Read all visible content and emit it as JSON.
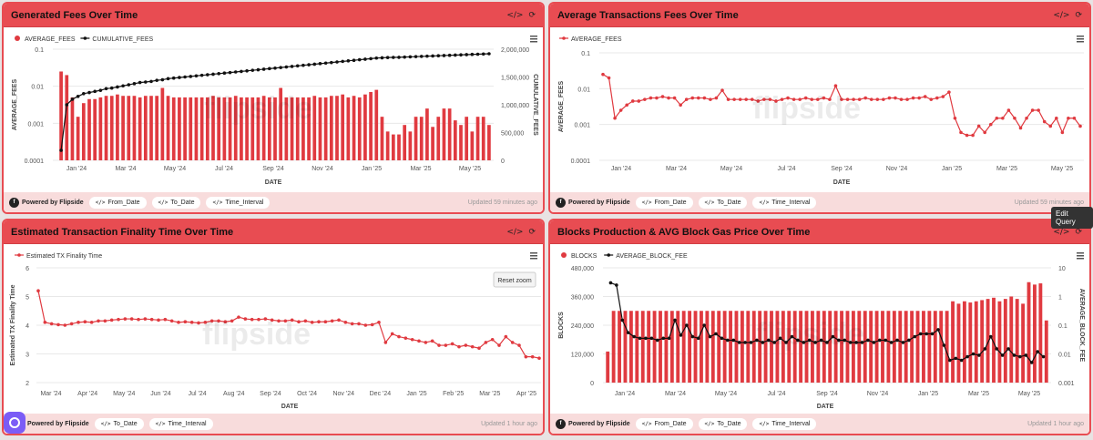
{
  "panels": {
    "p1": {
      "title": "Generated Fees Over Time",
      "updated": "Updated 59 minutes ago",
      "chips": [
        "From_Date",
        "To_Date",
        "Time_Interval"
      ]
    },
    "p2": {
      "title": "Average Transactions Fees Over Time",
      "updated": "Updated 59 minutes ago",
      "chips": [
        "From_Date",
        "To_Date",
        "Time_Interval"
      ]
    },
    "p3": {
      "title": "Estimated Transaction Finality Time Over Time",
      "updated": "Updated 1 hour ago",
      "chips": [
        "To_Date",
        "Time_Interval"
      ]
    },
    "p4": {
      "title": "Blocks Production & AVG Block Gas Price Over Time",
      "updated": "Updated 1 hour ago",
      "chips": [
        "From_Date",
        "To_Date",
        "Time_Interval"
      ]
    }
  },
  "footer": {
    "powered_by": "Powered by Flipside",
    "code_glyph": "</>"
  },
  "icons": {
    "code": "code-icon",
    "refresh": "refresh-icon",
    "menu": "menu-icon"
  },
  "tooltip": "Edit Query",
  "reset_zoom": "Reset zoom",
  "watermark": "flipside",
  "chart_data": [
    {
      "type": "bar",
      "xlabel": "DATE",
      "ylabel": "AVERAGE_FEES",
      "y2label": "CUMULATIVE_FEES",
      "y_scale": "log",
      "ylim": [
        0.0001,
        0.1
      ],
      "y2lim": [
        0,
        2000000
      ],
      "y_ticks": [
        "0.1",
        "0.01",
        "0.001",
        "0.0001"
      ],
      "y2_ticks": [
        "2,000,000",
        "1,500,000",
        "1,000,000",
        "500,000",
        "0"
      ],
      "x_ticks": [
        "Jan '24",
        "Mar '24",
        "May '24",
        "Jul '24",
        "Sep '24",
        "Nov '24",
        "Jan '25",
        "Mar '25",
        "May '25"
      ],
      "series": [
        {
          "name": "AVERAGE_FEES",
          "type": "bar",
          "color": "#e03a40",
          "values": [
            0.025,
            0.02,
            0.005,
            0.0015,
            0.0035,
            0.0045,
            0.0045,
            0.005,
            0.0055,
            0.0055,
            0.006,
            0.0055,
            0.0055,
            0.0055,
            0.005,
            0.0055,
            0.0055,
            0.0055,
            0.009,
            0.0055,
            0.005,
            0.005,
            0.005,
            0.005,
            0.005,
            0.005,
            0.005,
            0.0055,
            0.005,
            0.005,
            0.005,
            0.0055,
            0.005,
            0.005,
            0.005,
            0.005,
            0.0055,
            0.005,
            0.005,
            0.009,
            0.005,
            0.005,
            0.005,
            0.005,
            0.005,
            0.0055,
            0.005,
            0.005,
            0.0055,
            0.0055,
            0.006,
            0.005,
            0.0055,
            0.005,
            0.006,
            0.007,
            0.008,
            0.0015,
            0.0006,
            0.0005,
            0.0005,
            0.0009,
            0.0006,
            0.0015,
            0.0015,
            0.0025,
            0.0008,
            0.0015,
            0.0025,
            0.0025,
            0.0012,
            0.0009,
            0.0015,
            0.0006,
            0.0015,
            0.0015,
            0.0009
          ]
        },
        {
          "name": "CUMULATIVE_FEES",
          "type": "line",
          "color": "#111111",
          "values": [
            180000,
            1000000,
            1100000,
            1150000,
            1200000,
            1220000,
            1240000,
            1260000,
            1290000,
            1300000,
            1320000,
            1340000,
            1360000,
            1380000,
            1400000,
            1410000,
            1420000,
            1440000,
            1450000,
            1470000,
            1480000,
            1490000,
            1500000,
            1510000,
            1520000,
            1530000,
            1540000,
            1550000,
            1560000,
            1570000,
            1580000,
            1590000,
            1600000,
            1610000,
            1620000,
            1630000,
            1640000,
            1650000,
            1660000,
            1670000,
            1680000,
            1690000,
            1700000,
            1710000,
            1720000,
            1730000,
            1740000,
            1750000,
            1760000,
            1770000,
            1780000,
            1790000,
            1800000,
            1810000,
            1820000,
            1830000,
            1840000,
            1845000,
            1850000,
            1852000,
            1854000,
            1858000,
            1862000,
            1866000,
            1870000,
            1874000,
            1878000,
            1882000,
            1886000,
            1890000,
            1894000,
            1898000,
            1902000,
            1906000,
            1910000,
            1914000,
            1918000
          ]
        }
      ]
    },
    {
      "type": "line",
      "xlabel": "DATE",
      "ylabel": "AVERAGE_FEES",
      "y_scale": "log",
      "ylim": [
        0.0001,
        0.1
      ],
      "y_ticks": [
        "0.1",
        "0.01",
        "0.001",
        "0.0001"
      ],
      "x_ticks": [
        "Jan '24",
        "Mar '24",
        "May '24",
        "Jul '24",
        "Sep '24",
        "Nov '24",
        "Jan '25",
        "Mar '25",
        "May '25"
      ],
      "series": [
        {
          "name": "AVERAGE_FEES",
          "color": "#e03a40",
          "values": [
            0.025,
            0.02,
            0.0015,
            0.0025,
            0.0035,
            0.0045,
            0.0045,
            0.005,
            0.0055,
            0.0055,
            0.006,
            0.0055,
            0.0055,
            0.0035,
            0.005,
            0.0055,
            0.0055,
            0.0055,
            0.005,
            0.0055,
            0.009,
            0.005,
            0.005,
            0.005,
            0.005,
            0.005,
            0.0045,
            0.005,
            0.005,
            0.0045,
            0.005,
            0.0055,
            0.005,
            0.005,
            0.0055,
            0.005,
            0.005,
            0.0055,
            0.005,
            0.012,
            0.005,
            0.005,
            0.005,
            0.005,
            0.0055,
            0.005,
            0.005,
            0.005,
            0.0055,
            0.0055,
            0.005,
            0.005,
            0.0055,
            0.0055,
            0.006,
            0.005,
            0.0055,
            0.006,
            0.008,
            0.0015,
            0.0006,
            0.0005,
            0.0005,
            0.0009,
            0.0006,
            0.001,
            0.0015,
            0.0015,
            0.0025,
            0.0015,
            0.0008,
            0.0015,
            0.0025,
            0.0025,
            0.0012,
            0.0009,
            0.0015,
            0.0006,
            0.0015,
            0.0015,
            0.0009
          ]
        }
      ]
    },
    {
      "type": "line",
      "xlabel": "DATE",
      "ylabel": "Estimated TX Finality Time",
      "ylim": [
        2,
        6
      ],
      "y_ticks": [
        "6",
        "5",
        "4",
        "3",
        "2"
      ],
      "x_ticks": [
        "Mar '24",
        "Apr '24",
        "May '24",
        "Jun '24",
        "Jul '24",
        "Aug '24",
        "Sep '24",
        "Oct '24",
        "Nov '24",
        "Dec '24",
        "Jan '25",
        "Feb '25",
        "Mar '25",
        "Apr '25"
      ],
      "series": [
        {
          "name": "Estimated TX Finality Time",
          "color": "#e03a40",
          "values": [
            5.2,
            4.1,
            4.05,
            4.02,
            4.0,
            4.05,
            4.1,
            4.12,
            4.1,
            4.15,
            4.15,
            4.18,
            4.2,
            4.22,
            4.22,
            4.2,
            4.22,
            4.2,
            4.18,
            4.2,
            4.15,
            4.1,
            4.12,
            4.1,
            4.08,
            4.1,
            4.15,
            4.15,
            4.12,
            4.15,
            4.28,
            4.22,
            4.2,
            4.2,
            4.22,
            4.18,
            4.15,
            4.15,
            4.18,
            4.12,
            4.15,
            4.1,
            4.12,
            4.12,
            4.15,
            4.18,
            4.1,
            4.05,
            4.05,
            4.0,
            4.02,
            4.1,
            3.4,
            3.7,
            3.6,
            3.55,
            3.5,
            3.45,
            3.4,
            3.45,
            3.3,
            3.3,
            3.35,
            3.25,
            3.3,
            3.25,
            3.2,
            3.4,
            3.5,
            3.3,
            3.6,
            3.4,
            3.3,
            2.9,
            2.9,
            2.85
          ]
        }
      ]
    },
    {
      "type": "bar",
      "xlabel": "DATE",
      "ylabel": "BLOCKS",
      "y2label": "AVERAGE_BLOCK_FEE",
      "ylim": [
        0,
        480000
      ],
      "y2_scale": "log",
      "y2lim": [
        0.001,
        10
      ],
      "y_ticks": [
        "480,000",
        "360,000",
        "240,000",
        "120,000",
        "0"
      ],
      "y2_ticks": [
        "10",
        "1",
        "0.1",
        "0.01",
        "0.001"
      ],
      "x_ticks": [
        "Jan '24",
        "Mar '24",
        "May '24",
        "Jul '24",
        "Sep '24",
        "Nov '24",
        "Jan '25",
        "Mar '25",
        "May '25"
      ],
      "series": [
        {
          "name": "BLOCKS",
          "type": "bar",
          "color": "#e03a40",
          "values": [
            130000,
            300000,
            300000,
            300000,
            300000,
            300000,
            300000,
            300000,
            300000,
            300000,
            300000,
            300000,
            300000,
            300000,
            300000,
            300000,
            300000,
            300000,
            300000,
            300000,
            300000,
            300000,
            300000,
            300000,
            300000,
            300000,
            300000,
            300000,
            300000,
            300000,
            300000,
            300000,
            300000,
            300000,
            300000,
            300000,
            300000,
            300000,
            300000,
            300000,
            300000,
            300000,
            300000,
            300000,
            300000,
            300000,
            300000,
            300000,
            300000,
            300000,
            300000,
            300000,
            300000,
            300000,
            300000,
            300000,
            300000,
            300000,
            300000,
            340000,
            330000,
            340000,
            335000,
            340000,
            345000,
            350000,
            355000,
            340000,
            350000,
            360000,
            350000,
            330000,
            420000,
            410000,
            415000,
            260000
          ]
        },
        {
          "name": "AVERAGE_BLOCK_FEE",
          "type": "line",
          "color": "#111111",
          "values": [
            3.0,
            2.5,
            0.15,
            0.055,
            0.04,
            0.035,
            0.035,
            0.035,
            0.03,
            0.035,
            0.035,
            0.15,
            0.045,
            0.1,
            0.04,
            0.035,
            0.1,
            0.04,
            0.05,
            0.035,
            0.03,
            0.03,
            0.025,
            0.025,
            0.025,
            0.03,
            0.025,
            0.03,
            0.025,
            0.035,
            0.025,
            0.04,
            0.03,
            0.025,
            0.03,
            0.025,
            0.03,
            0.025,
            0.04,
            0.03,
            0.03,
            0.025,
            0.025,
            0.025,
            0.03,
            0.025,
            0.03,
            0.03,
            0.025,
            0.03,
            0.025,
            0.03,
            0.04,
            0.05,
            0.05,
            0.05,
            0.07,
            0.02,
            0.006,
            0.007,
            0.006,
            0.008,
            0.01,
            0.009,
            0.015,
            0.04,
            0.015,
            0.009,
            0.015,
            0.009,
            0.008,
            0.009,
            0.005,
            0.012,
            0.008
          ]
        }
      ]
    }
  ]
}
